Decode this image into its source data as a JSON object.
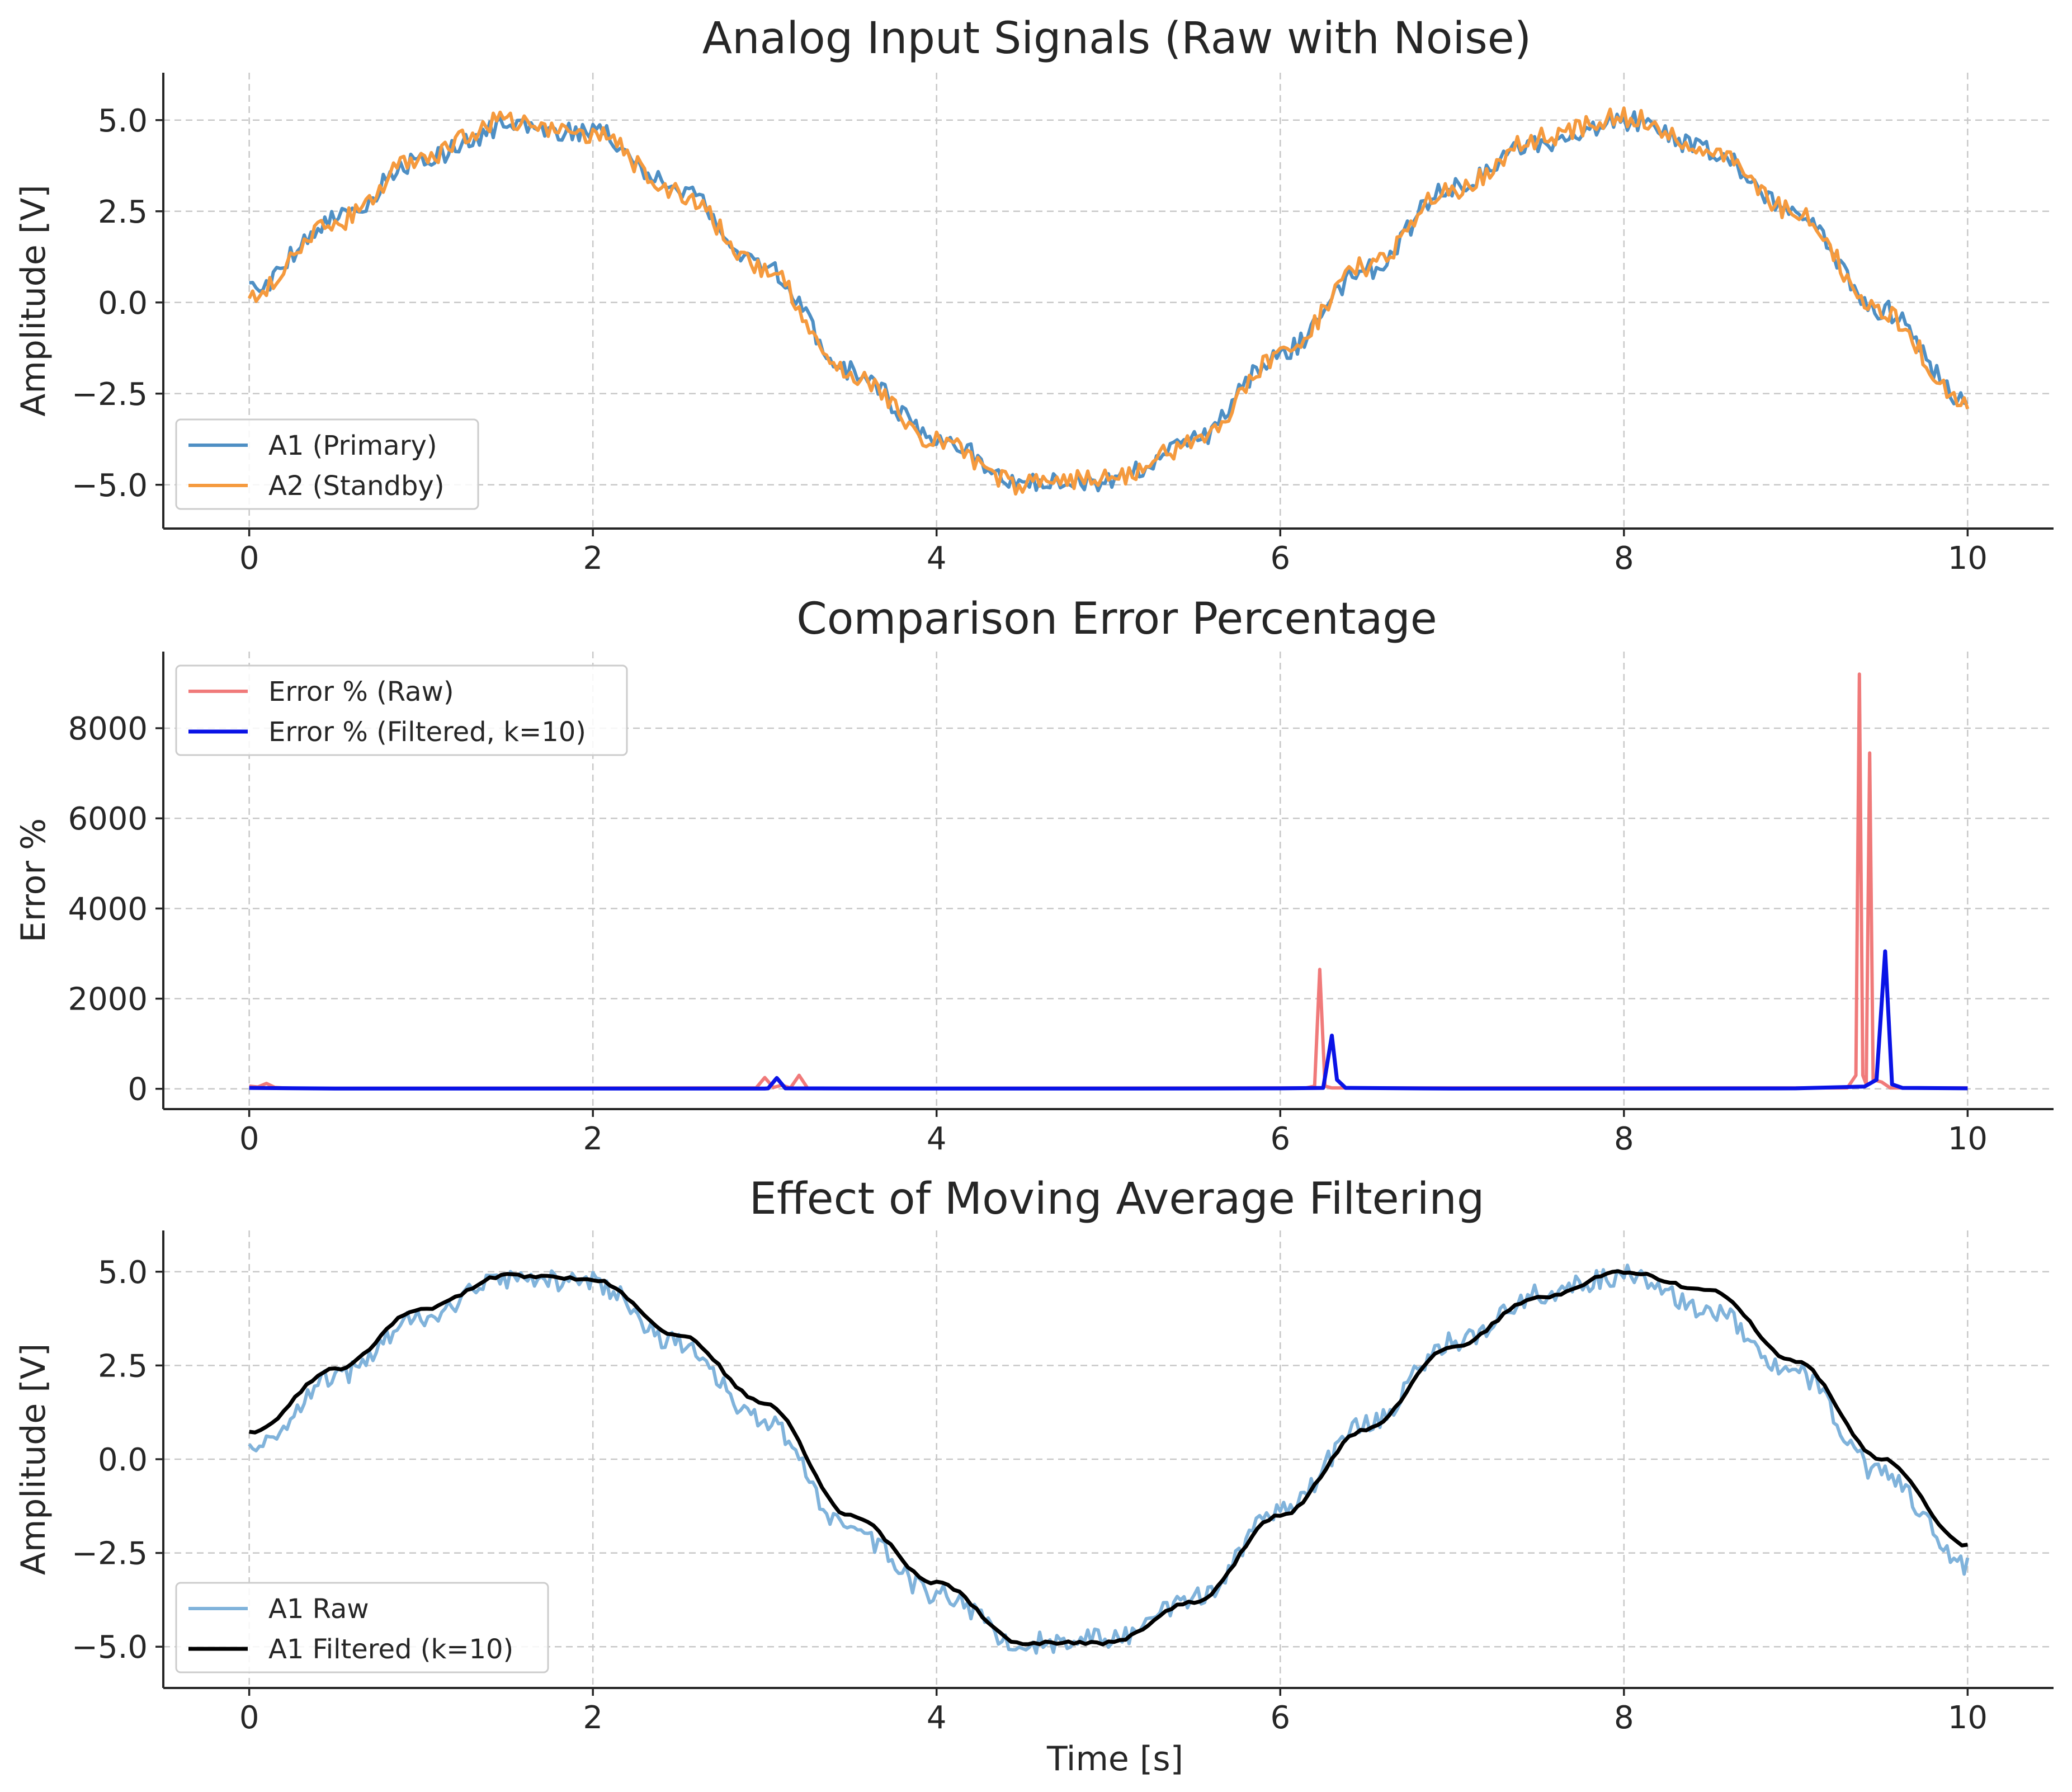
{
  "chart_data": [
    {
      "type": "line",
      "title": "Analog Input Signals (Raw with Noise)",
      "xlabel": "",
      "ylabel": "Amplitude [V]",
      "xlim": [
        -0.5,
        10.5
      ],
      "ylim": [
        -6.2,
        6.3
      ],
      "xticks": [
        0,
        2,
        4,
        6,
        8,
        10
      ],
      "xtick_labels": [
        "0",
        "2",
        "4",
        "6",
        "8",
        "10"
      ],
      "yticks": [
        5,
        2.5,
        0,
        -2.5,
        -5
      ],
      "ytick_labels": [
        "5.0",
        "2.5",
        "0.0",
        "−2.5",
        "−5.0"
      ],
      "grid": true,
      "legend_position": "lower-left",
      "series": [
        {
          "name": "A1 (Primary)",
          "color": "#4e8fc4",
          "noise": 0.28,
          "seed": 11,
          "x": [
            0,
            0.5,
            1,
            1.5,
            2,
            2.5,
            3,
            3.5,
            4,
            4.5,
            5,
            5.5,
            6,
            6.5,
            7,
            7.5,
            8,
            8.5,
            9,
            9.5,
            10
          ],
          "values": [
            0.3,
            2.3,
            3.9,
            4.8,
            4.7,
            3.1,
            1.0,
            -1.9,
            -3.7,
            -4.9,
            -4.9,
            -3.8,
            -1.4,
            0.9,
            3.2,
            4.4,
            5.0,
            4.2,
            2.4,
            -0.2,
            -2.7
          ]
        },
        {
          "name": "A2 (Standby)",
          "color": "#f59a3e",
          "noise": 0.28,
          "seed": 29,
          "x": [
            0,
            0.5,
            1,
            1.5,
            2,
            2.5,
            3,
            3.5,
            4,
            4.5,
            5,
            5.5,
            6,
            6.5,
            7,
            7.5,
            8,
            8.5,
            9,
            9.5,
            10
          ],
          "values": [
            0.2,
            2.2,
            4.0,
            5.0,
            4.6,
            3.0,
            0.9,
            -2.0,
            -3.8,
            -5.0,
            -4.8,
            -3.9,
            -1.5,
            1.0,
            3.1,
            4.5,
            5.1,
            4.1,
            2.5,
            -0.3,
            -2.8
          ]
        }
      ]
    },
    {
      "type": "line",
      "title": "Comparison Error Percentage",
      "xlabel": "",
      "ylabel": "Error %",
      "xlim": [
        -0.5,
        10.5
      ],
      "ylim": [
        -450,
        9700
      ],
      "xticks": [
        0,
        2,
        4,
        6,
        8,
        10
      ],
      "xtick_labels": [
        "0",
        "2",
        "4",
        "6",
        "8",
        "10"
      ],
      "yticks": [
        0,
        2000,
        4000,
        6000,
        8000
      ],
      "ytick_labels": [
        "0",
        "2000",
        "4000",
        "6000",
        "8000"
      ],
      "grid": true,
      "legend_position": "top-left",
      "series": [
        {
          "name": "Error % (Raw)",
          "color": "#f07a7a",
          "noise": 0,
          "seed": 0,
          "x": [
            0,
            0.05,
            0.1,
            0.15,
            0.2,
            0.3,
            2.95,
            3.0,
            3.05,
            3.1,
            3.15,
            3.2,
            3.25,
            3.3,
            6.15,
            6.2,
            6.23,
            6.26,
            6.3,
            9.3,
            9.35,
            9.37,
            9.39,
            9.41,
            9.43,
            9.45,
            9.5,
            9.55,
            10
          ],
          "values": [
            60,
            40,
            120,
            30,
            20,
            10,
            20,
            250,
            30,
            80,
            20,
            300,
            10,
            10,
            20,
            60,
            2650,
            60,
            20,
            20,
            300,
            9200,
            300,
            100,
            7450,
            200,
            150,
            20,
            20
          ]
        },
        {
          "name": "Error % (Filtered, k=10)",
          "color": "#0a13e6",
          "noise": 0,
          "seed": 0,
          "x": [
            0,
            0.5,
            1,
            2,
            3,
            3.02,
            3.07,
            3.12,
            4,
            5,
            6,
            6.25,
            6.3,
            6.33,
            6.38,
            7,
            8,
            9,
            9.4,
            9.47,
            9.52,
            9.56,
            9.62,
            10
          ],
          "values": [
            20,
            5,
            5,
            5,
            5,
            10,
            240,
            10,
            5,
            5,
            10,
            20,
            1180,
            200,
            20,
            5,
            5,
            10,
            50,
            200,
            3050,
            100,
            20,
            10
          ]
        }
      ]
    },
    {
      "type": "line",
      "title": "Effect of Moving Average Filtering",
      "xlabel": "Time [s]",
      "ylabel": "Amplitude [V]",
      "xlim": [
        -0.5,
        10.5
      ],
      "ylim": [
        -6.1,
        6.1
      ],
      "xticks": [
        0,
        2,
        4,
        6,
        8,
        10
      ],
      "xtick_labels": [
        "0",
        "2",
        "4",
        "6",
        "8",
        "10"
      ],
      "yticks": [
        5,
        2.5,
        0,
        -2.5,
        -5
      ],
      "ytick_labels": [
        "5.0",
        "2.5",
        "0.0",
        "−2.5",
        "−5.0"
      ],
      "grid": true,
      "legend_position": "lower-left",
      "series": [
        {
          "name": "A1 Raw",
          "color": "#80b3db",
          "noise": 0.28,
          "seed": 53,
          "x": [
            0,
            0.5,
            1,
            1.5,
            2,
            2.5,
            3,
            3.5,
            4,
            4.5,
            5,
            5.5,
            6,
            6.5,
            7,
            7.5,
            8,
            8.5,
            9,
            9.5,
            10
          ],
          "values": [
            0.3,
            2.2,
            3.8,
            4.8,
            4.7,
            3.1,
            1.0,
            -1.9,
            -3.6,
            -4.9,
            -4.8,
            -3.7,
            -1.4,
            0.9,
            3.1,
            4.4,
            4.9,
            4.0,
            2.3,
            -0.4,
            -2.8
          ]
        },
        {
          "name": "A1 Filtered (k=10)",
          "color": "#000000",
          "noise": 0,
          "seed": 0,
          "x": [
            0,
            0.5,
            1,
            1.5,
            2,
            2.5,
            3,
            3.5,
            4,
            4.5,
            5,
            5.5,
            6,
            6.5,
            7,
            7.5,
            8,
            8.5,
            9,
            9.5,
            10
          ],
          "values": [
            0.7,
            2.4,
            4.0,
            4.9,
            4.8,
            3.3,
            1.5,
            -1.5,
            -3.3,
            -4.9,
            -4.9,
            -3.8,
            -1.5,
            0.8,
            3.0,
            4.3,
            5.0,
            4.5,
            2.6,
            0.0,
            -2.3
          ]
        }
      ]
    }
  ]
}
